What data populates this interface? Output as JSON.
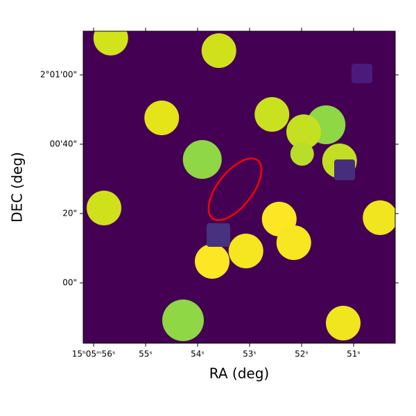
{
  "chart_data": {
    "type": "image",
    "xlabel": "RA (deg)",
    "ylabel": "DEC (deg)",
    "background": "#440154",
    "xlim": [
      56.2,
      50.2
    ],
    "ylim": [
      -17.4,
      72.6
    ],
    "xticks": [
      {
        "value": 56,
        "label": "15ʰ05ᵐ56ˢ"
      },
      {
        "value": 55,
        "label": "55ˢ"
      },
      {
        "value": 54,
        "label": "54ˢ"
      },
      {
        "value": 53,
        "label": "53ˢ"
      },
      {
        "value": 52,
        "label": "52ˢ"
      },
      {
        "value": 51,
        "label": "51ˢ"
      }
    ],
    "yticks": [
      {
        "value": 60,
        "label": "2°01'00\""
      },
      {
        "value": 40,
        "label": "00'40\""
      },
      {
        "value": 20,
        "label": "20\""
      },
      {
        "value": 0,
        "label": "00\""
      }
    ],
    "sources": {
      "x": [
        55.67,
        53.59,
        54.69,
        52.57,
        51.53,
        51.96,
        53.91,
        51.27,
        51.99,
        55.8,
        52.43,
        52.15,
        53.07,
        53.72,
        50.49,
        54.28,
        51.2
      ],
      "y": [
        70.6,
        67.0,
        47.6,
        48.6,
        45.6,
        43.6,
        35.6,
        35.2,
        37.2,
        21.6,
        18.4,
        11.6,
        9.2,
        6.2,
        18.8,
        -10.8,
        -11.6
      ],
      "r": [
        5,
        5,
        5,
        5,
        5.6,
        5,
        5.6,
        5,
        3.4,
        5,
        5,
        5,
        5,
        5,
        5,
        6,
        5
      ],
      "colors": [
        "#d2e21b",
        "#d0e11c",
        "#e5e419",
        "#cae11f",
        "#8fd744",
        "#c5e021",
        "#8fd744",
        "#c2df23",
        "#b8de29",
        "#d0e11c",
        "#fde725",
        "#f8e621",
        "#f6e620",
        "#fde725",
        "#f1e51d",
        "#8fd744",
        "#f1e51d"
      ]
    }
  }
}
